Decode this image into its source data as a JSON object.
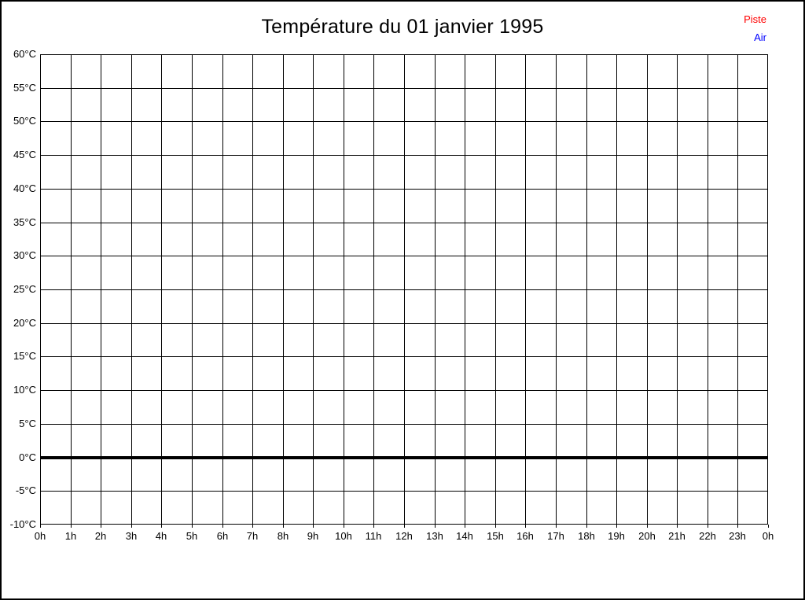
{
  "title": "Température du 01 janvier 1995",
  "legend": {
    "items": [
      {
        "label": "Piste",
        "color": "#ff0000"
      },
      {
        "label": "Air",
        "color": "#0000ff"
      }
    ]
  },
  "page": {
    "background": "#ffffff",
    "frame_color": "#000000",
    "grid_color": "#000000"
  },
  "chart_data": {
    "type": "line",
    "title": "Température du 01 janvier 1995",
    "x_tick_labels": [
      "0h",
      "1h",
      "2h",
      "3h",
      "4h",
      "5h",
      "6h",
      "7h",
      "8h",
      "9h",
      "10h",
      "11h",
      "12h",
      "13h",
      "14h",
      "15h",
      "16h",
      "17h",
      "18h",
      "19h",
      "20h",
      "21h",
      "22h",
      "23h",
      "0h"
    ],
    "y_tick_labels": [
      "60°C",
      "55°C",
      "50°C",
      "45°C",
      "40°C",
      "35°C",
      "30°C",
      "25°C",
      "20°C",
      "15°C",
      "10°C",
      "5°C",
      "0°C",
      "-5°C",
      "-10°C"
    ],
    "ylim": [
      -10,
      60
    ],
    "y_tick_step": 5,
    "xlabel": "",
    "ylabel": "",
    "grid": true,
    "legend_position": "top-right",
    "zero_line": {
      "value": 0,
      "color": "#000000",
      "thickness": 4
    },
    "series": [
      {
        "name": "Piste",
        "color": "#ff0000",
        "values": []
      },
      {
        "name": "Air",
        "color": "#0000ff",
        "values": []
      }
    ]
  }
}
